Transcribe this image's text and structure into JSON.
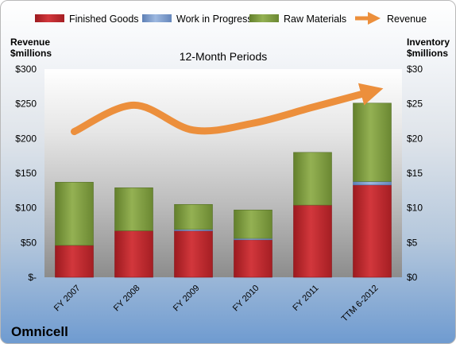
{
  "chart_data": {
    "type": "bar",
    "stacked": true,
    "title": "12-Month Periods",
    "company": "Omnicell",
    "ylabel_left": [
      "Revenue",
      "$millions"
    ],
    "ylabel_right": [
      "Inventory",
      "$millions"
    ],
    "ylim_left": [
      0,
      300
    ],
    "ylim_right": [
      0,
      30
    ],
    "left_ticks": [
      "$-",
      "$50",
      "$100",
      "$150",
      "$200",
      "$250",
      "$300"
    ],
    "right_ticks": [
      "$0",
      "$5",
      "$10",
      "$15",
      "$20",
      "$25",
      "$30"
    ],
    "categories": [
      "FY 2007",
      "FY 2008",
      "FY 2009",
      "FY 2010",
      "FY 2011",
      "TTM 6-2012"
    ],
    "series": [
      {
        "name": "Finished Goods",
        "type": "bar",
        "axis": "right",
        "color": "#c0282d",
        "values": [
          4.6,
          6.7,
          6.7,
          5.4,
          10.4,
          13.3
        ]
      },
      {
        "name": "Work in Progress",
        "type": "bar",
        "axis": "right",
        "color": "#7e9fd1",
        "values": [
          0.0,
          0.0,
          0.2,
          0.2,
          0.0,
          0.5
        ]
      },
      {
        "name": "Raw Materials",
        "type": "bar",
        "axis": "right",
        "color": "#7f9b3f",
        "values": [
          9.1,
          6.2,
          3.6,
          4.1,
          7.6,
          11.3
        ]
      },
      {
        "name": "Revenue",
        "type": "line",
        "axis": "left",
        "color": "#ec8f3c",
        "values": [
          210,
          248,
          212,
          222,
          245,
          268
        ]
      }
    ],
    "grid": false,
    "legend": "top"
  }
}
